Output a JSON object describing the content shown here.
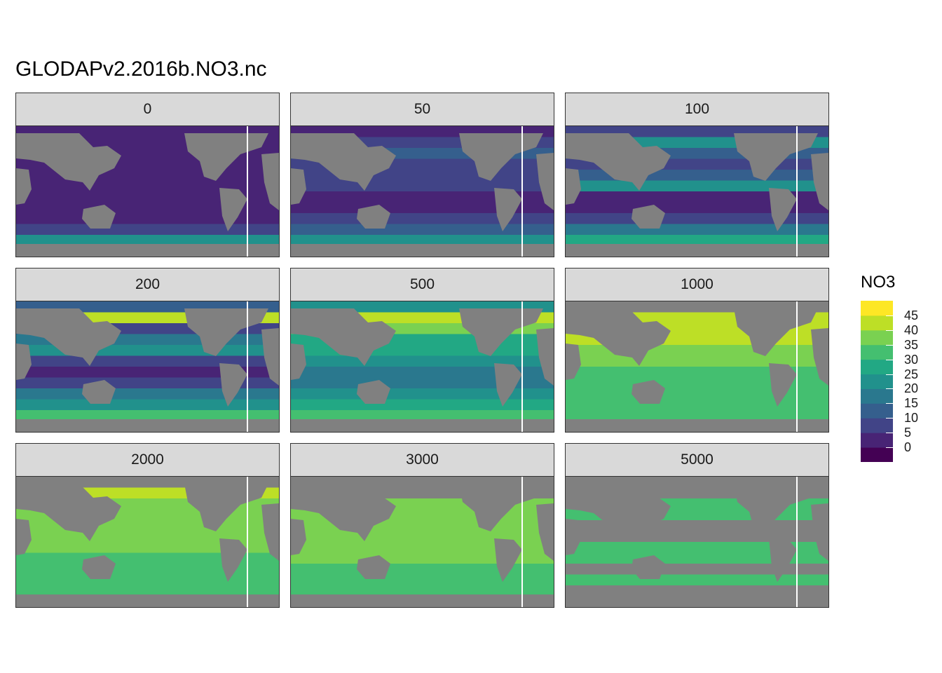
{
  "title": "GLODAPv2.2016b.NO3.nc",
  "legend": {
    "title": "NO3",
    "breaks": [
      "45",
      "40",
      "35",
      "30",
      "25",
      "20",
      "15",
      "10",
      "5",
      "0"
    ],
    "colors": [
      "#440154",
      "#482475",
      "#414487",
      "#355f8d",
      "#2a788e",
      "#21918c",
      "#22a884",
      "#44bf70",
      "#7ad151",
      "#bddf26",
      "#fde725"
    ]
  },
  "chart_data": {
    "type": "heatmap",
    "variable": "NO3",
    "facet_labels": [
      "0",
      "50",
      "100",
      "200",
      "500",
      "1000",
      "2000",
      "3000",
      "5000"
    ],
    "color_scale": {
      "min": 0,
      "max": 50,
      "step": 5
    },
    "land_color": "#808080",
    "panels": [
      {
        "depth": "0",
        "bands": [
          1,
          1,
          1,
          1,
          1,
          1,
          1,
          1,
          1,
          2,
          5,
          6
        ]
      },
      {
        "depth": "50",
        "bands": [
          1,
          2,
          3,
          2,
          2,
          2,
          1,
          1,
          2,
          3,
          5,
          6
        ]
      },
      {
        "depth": "100",
        "bands": [
          2,
          5,
          3,
          2,
          3,
          5,
          1,
          1,
          2,
          4,
          6,
          7
        ]
      },
      {
        "depth": "200",
        "bands": [
          3,
          9,
          2,
          4,
          5,
          2,
          1,
          2,
          4,
          5,
          7,
          7
        ]
      },
      {
        "depth": "500",
        "bands": [
          5,
          9,
          8,
          6,
          6,
          5,
          4,
          4,
          5,
          6,
          7,
          8
        ]
      },
      {
        "depth": "1000",
        "bands": [
          0,
          9,
          9,
          9,
          8,
          8,
          7,
          7,
          7,
          7,
          7,
          7
        ]
      },
      {
        "depth": "2000",
        "bands": [
          0,
          9,
          8,
          8,
          8,
          8,
          8,
          7,
          7,
          7,
          7,
          7
        ]
      },
      {
        "depth": "3000",
        "bands": [
          0,
          0,
          8,
          8,
          8,
          8,
          8,
          8,
          7,
          7,
          7,
          7
        ]
      },
      {
        "depth": "5000",
        "bands": [
          0,
          0,
          7,
          7,
          0,
          0,
          7,
          7,
          0,
          7,
          0,
          0
        ]
      }
    ]
  }
}
